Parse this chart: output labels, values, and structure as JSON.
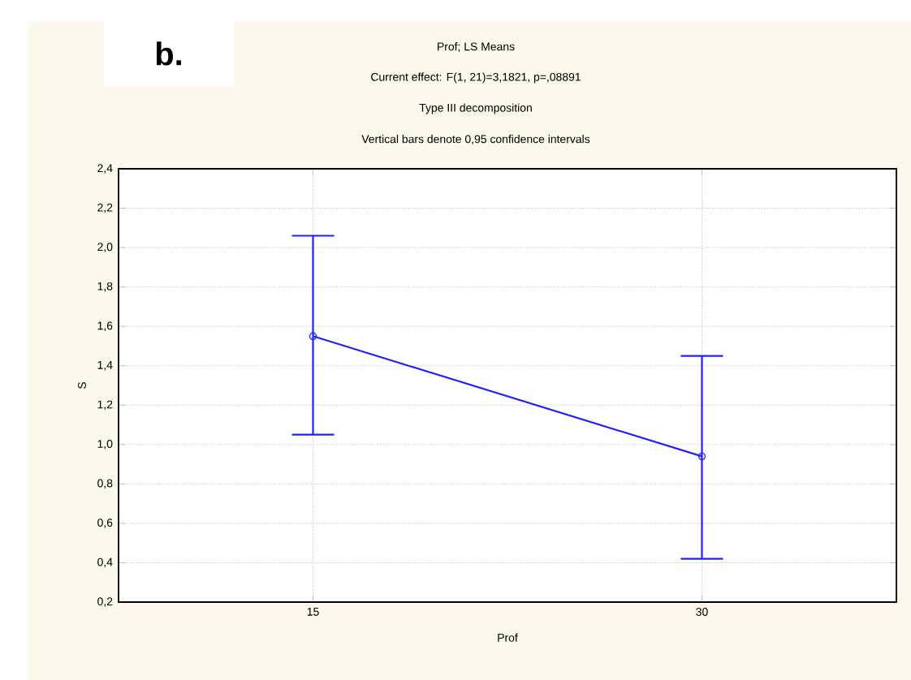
{
  "chart_data": {
    "type": "line",
    "title": "Prof; LS Means",
    "subtitle": "Current effect: F(1, 21)=3,1821, p=,08891",
    "annotations": [
      "Type III decomposition",
      "Vertical bars denote 0,95 confidence intervals",
      "b."
    ],
    "xlabel": "Prof",
    "ylabel": "S",
    "categories": [
      "15",
      "30"
    ],
    "series": [
      {
        "color": "#2020ff",
        "values": [
          1.55,
          0.94
        ],
        "errors": [
          [
            1.05,
            2.06
          ],
          [
            0.42,
            1.45
          ]
        ]
      }
    ],
    "ylim": [
      0.2,
      2.4
    ],
    "yticks": [
      {
        "value": 0.2,
        "label": "0,2"
      },
      {
        "value": 0.4,
        "label": "0,4"
      },
      {
        "value": 0.6,
        "label": "0,6"
      },
      {
        "value": 0.8,
        "label": "0,8"
      },
      {
        "value": 1.0,
        "label": "1,0"
      },
      {
        "value": 1.2,
        "label": "1,2"
      },
      {
        "value": 1.4,
        "label": "1,4"
      },
      {
        "value": 1.6,
        "label": "1,6"
      },
      {
        "value": 1.8,
        "label": "1,8"
      },
      {
        "value": 2.0,
        "label": "2,0"
      },
      {
        "value": 2.2,
        "label": "2,2"
      },
      {
        "value": 2.4,
        "label": "2,4"
      }
    ],
    "grid": true,
    "marker": "circle",
    "line_style": "solid"
  }
}
